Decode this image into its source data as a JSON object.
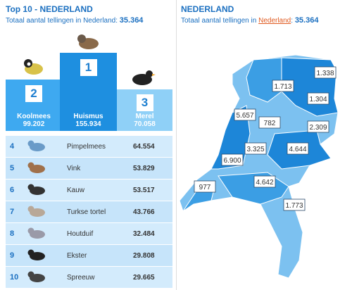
{
  "left": {
    "title": "Top 10 - NEDERLAND",
    "subtitle": "Totaal aantal tellingen in Nederland:",
    "total": "35.364",
    "podium": [
      {
        "rank": "2",
        "name": "Koolmees",
        "count": "99.202"
      },
      {
        "rank": "1",
        "name": "Huismus",
        "count": "155.934"
      },
      {
        "rank": "3",
        "name": "Merel",
        "count": "70.058"
      }
    ],
    "rows": [
      {
        "rank": "4",
        "name": "Pimpelmees",
        "count": "64.554"
      },
      {
        "rank": "5",
        "name": "Vink",
        "count": "53.829"
      },
      {
        "rank": "6",
        "name": "Kauw",
        "count": "53.517"
      },
      {
        "rank": "7",
        "name": "Turkse tortel",
        "count": "43.766"
      },
      {
        "rank": "8",
        "name": "Houtduif",
        "count": "32.484"
      },
      {
        "rank": "9",
        "name": "Ekster",
        "count": "29.808"
      },
      {
        "rank": "10",
        "name": "Spreeuw",
        "count": "29.665"
      }
    ]
  },
  "right": {
    "title": "NEDERLAND",
    "subtitle": "Totaal aantal tellingen in",
    "link": "Nederland",
    "colon": ":",
    "total": "35.364",
    "regions": [
      "1.338",
      "1.713",
      "1.304",
      "5.657",
      "782",
      "2.309",
      "3.325",
      "4.644",
      "6.900",
      "977",
      "4.642",
      "1.773"
    ]
  }
}
